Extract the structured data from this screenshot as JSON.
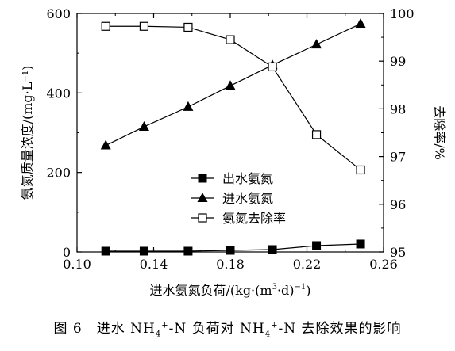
{
  "chart_data": {
    "type": "line",
    "xlabel_parts": [
      "进水氨氮负荷/(kg·(m",
      "3",
      "·d)",
      "−1",
      ")"
    ],
    "ylabel": "氨氮质量浓度/(mg·L⁻¹)",
    "y2label": "去除率/%",
    "xlim": [
      0.1,
      0.26
    ],
    "ylim": [
      0,
      600
    ],
    "y2lim": [
      95,
      100
    ],
    "xticks": [
      "0.10",
      "0.14",
      "0.18",
      "0.22",
      "0.26"
    ],
    "yticks": [
      "0",
      "200",
      "400",
      "600"
    ],
    "y2ticks": [
      "95",
      "96",
      "97",
      "98",
      "99",
      "100"
    ],
    "legend_position": "center",
    "series": [
      {
        "name": "出水氨氮",
        "axis": "left",
        "marker": "filled-square",
        "x": [
          0.115,
          0.135,
          0.158,
          0.18,
          0.202,
          0.225,
          0.248
        ],
        "y": [
          2,
          2,
          2,
          4,
          6,
          16,
          20
        ]
      },
      {
        "name": "进水氨氮",
        "axis": "left",
        "marker": "filled-triangle",
        "x": [
          0.115,
          0.135,
          0.158,
          0.18,
          0.202,
          0.225,
          0.248
        ],
        "y": [
          268,
          315,
          365,
          418,
          470,
          522,
          574
        ]
      },
      {
        "name": "氨氮去除率",
        "axis": "right",
        "marker": "open-square",
        "x": [
          0.115,
          0.135,
          0.158,
          0.18,
          0.202,
          0.225,
          0.248
        ],
        "y": [
          99.73,
          99.73,
          99.71,
          99.45,
          98.88,
          97.46,
          96.72
        ]
      }
    ]
  },
  "caption": {
    "prefix": "图 6　进水 NH",
    "sub1": "4",
    "sup1": "+",
    "mid": "-N 负荷对 NH",
    "sub2": "4",
    "sup2": "+",
    "suffix": "-N 去除效果的影响"
  }
}
